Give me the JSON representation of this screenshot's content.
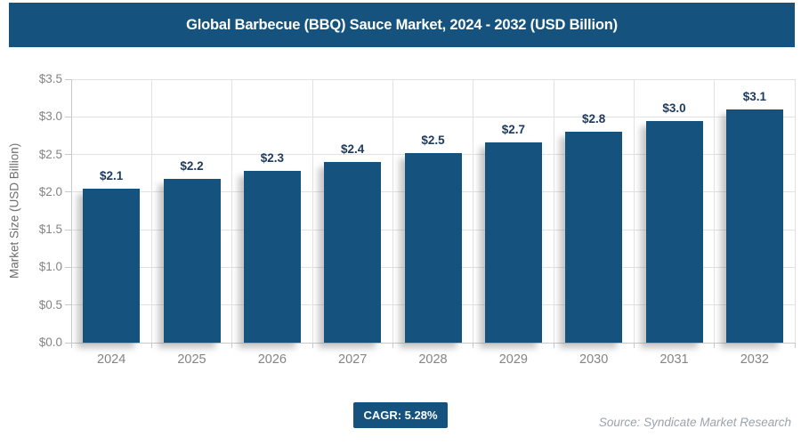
{
  "header": {
    "title": "Global Barbecue (BBQ) Sauce Market, 2024 - 2032 (USD Billion)"
  },
  "chart_data": {
    "type": "bar",
    "title": "Global Barbecue (BBQ) Sauce Market, 2024 - 2032 (USD Billion)",
    "categories": [
      "2024",
      "2025",
      "2026",
      "2027",
      "2028",
      "2029",
      "2030",
      "2031",
      "2032"
    ],
    "values": [
      2.05,
      2.17,
      2.28,
      2.4,
      2.52,
      2.66,
      2.8,
      2.95,
      3.1
    ],
    "bar_labels": [
      "$2.1",
      "$2.2",
      "$2.3",
      "$2.4",
      "$2.5",
      "$2.7",
      "$2.8",
      "$3.0",
      "$3.1"
    ],
    "xlabel": "",
    "ylabel": "Market Size (USD Billion)",
    "ylim": [
      0,
      3.5
    ],
    "ytick_step": 0.5,
    "ytick_labels": [
      "$0.0",
      "$0.5",
      "$1.0",
      "$1.5",
      "$2.0",
      "$2.5",
      "$3.0",
      "$3.5"
    ],
    "grid": "both",
    "legend": "none"
  },
  "footer": {
    "cagr_label": "CAGR: 5.28%",
    "source": "Source: Syndicate Market Research"
  },
  "colors": {
    "primary": "#15537E",
    "bar": "#15537E",
    "data_label": "#1E3A5C",
    "axis_text": "#848484",
    "gridline": "#E2E2E2",
    "source_text": "#9BA3AB",
    "badge_text": "#FFFFFF"
  }
}
